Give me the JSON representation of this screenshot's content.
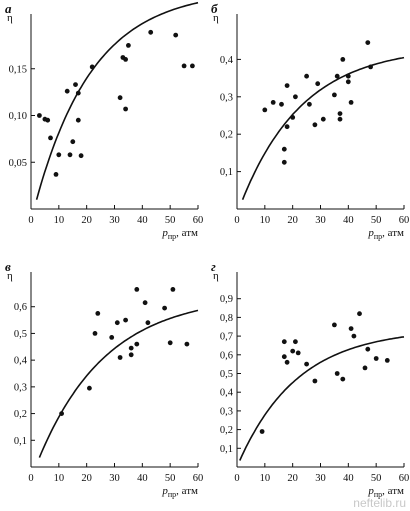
{
  "chart_data": [
    {
      "type": "scatter",
      "panel": "а",
      "ylabel": "η",
      "xlabel_main": "p",
      "xlabel_sub": "пр",
      "xlabel_unit": ", атм",
      "xlim": [
        0,
        60
      ],
      "ylim": [
        0,
        0.2
      ],
      "xticks": [
        0,
        10,
        20,
        30,
        40,
        50,
        60
      ],
      "yticks": [
        0.05,
        0.1,
        0.15
      ],
      "ytick_labels": [
        "0,05",
        "0,10",
        "0,15"
      ],
      "points": [
        [
          3,
          0.1
        ],
        [
          5,
          0.096
        ],
        [
          6,
          0.095
        ],
        [
          7,
          0.076
        ],
        [
          9,
          0.037
        ],
        [
          10,
          0.058
        ],
        [
          13,
          0.126
        ],
        [
          14,
          0.058
        ],
        [
          15,
          0.072
        ],
        [
          16,
          0.133
        ],
        [
          17,
          0.124
        ],
        [
          17,
          0.095
        ],
        [
          18,
          0.057
        ],
        [
          22,
          0.152
        ],
        [
          32,
          0.119
        ],
        [
          33,
          0.162
        ],
        [
          34,
          0.107
        ],
        [
          34,
          0.16
        ],
        [
          35,
          0.175
        ],
        [
          43,
          0.189
        ],
        [
          52,
          0.186
        ],
        [
          55,
          0.153
        ],
        [
          58,
          0.153
        ]
      ],
      "curve": {
        "a": 0.2345,
        "b": 0.01,
        "k": 0.048,
        "x0": 2,
        "x1": 60
      }
    },
    {
      "type": "scatter",
      "panel": "б",
      "ylabel": "η",
      "xlabel_main": "p",
      "xlabel_sub": "пр",
      "xlabel_unit": ", атм",
      "xlim": [
        0,
        60
      ],
      "ylim": [
        0,
        0.5
      ],
      "xticks": [
        0,
        10,
        20,
        30,
        40,
        50,
        60
      ],
      "yticks": [
        0.1,
        0.2,
        0.3,
        0.4
      ],
      "ytick_labels": [
        "0,1",
        "0,2",
        "0,3",
        "0,4"
      ],
      "points": [
        [
          10,
          0.265
        ],
        [
          13,
          0.285
        ],
        [
          16,
          0.28
        ],
        [
          17,
          0.125
        ],
        [
          17,
          0.16
        ],
        [
          18,
          0.22
        ],
        [
          18,
          0.33
        ],
        [
          20,
          0.245
        ],
        [
          21,
          0.3
        ],
        [
          25,
          0.355
        ],
        [
          26,
          0.28
        ],
        [
          28,
          0.225
        ],
        [
          29,
          0.335
        ],
        [
          31,
          0.24
        ],
        [
          35,
          0.305
        ],
        [
          36,
          0.355
        ],
        [
          37,
          0.255
        ],
        [
          37,
          0.24
        ],
        [
          38,
          0.4
        ],
        [
          40,
          0.34
        ],
        [
          40,
          0.355
        ],
        [
          41,
          0.285
        ],
        [
          47,
          0.445
        ],
        [
          48,
          0.38
        ]
      ],
      "curve": {
        "a": 0.435,
        "b": 0.025,
        "k": 0.045,
        "x0": 2,
        "x1": 60
      }
    },
    {
      "type": "scatter",
      "panel": "в",
      "ylabel": "η",
      "xlabel_main": "p",
      "xlabel_sub": "пр",
      "xlabel_unit": ", атм",
      "xlim": [
        0,
        60
      ],
      "ylim": [
        0,
        0.7
      ],
      "xticks": [
        0,
        10,
        20,
        30,
        40,
        50,
        60
      ],
      "yticks": [
        0.1,
        0.2,
        0.3,
        0.4,
        0.5,
        0.6
      ],
      "ytick_labels": [
        "0,1",
        "0,2",
        "0,3",
        "0,4",
        "0,5",
        "0,6"
      ],
      "points": [
        [
          11,
          0.2
        ],
        [
          21,
          0.295
        ],
        [
          23,
          0.5
        ],
        [
          24,
          0.575
        ],
        [
          29,
          0.485
        ],
        [
          31,
          0.54
        ],
        [
          32,
          0.41
        ],
        [
          34,
          0.55
        ],
        [
          36,
          0.42
        ],
        [
          36,
          0.445
        ],
        [
          38,
          0.665
        ],
        [
          38,
          0.46
        ],
        [
          41,
          0.615
        ],
        [
          42,
          0.54
        ],
        [
          48,
          0.595
        ],
        [
          50,
          0.465
        ],
        [
          51,
          0.665
        ],
        [
          56,
          0.46
        ]
      ],
      "curve": {
        "a": 0.645,
        "b": 0.035,
        "k": 0.041,
        "x0": 3,
        "x1": 60
      }
    },
    {
      "type": "scatter",
      "panel": "г",
      "ylabel": "η",
      "xlabel_main": "p",
      "xlabel_sub": "пр",
      "xlabel_unit": ", атм",
      "xlim": [
        0,
        60
      ],
      "ylim": [
        0,
        1.0
      ],
      "xticks": [
        0,
        10,
        20,
        30,
        40,
        50,
        60
      ],
      "yticks": [
        0.1,
        0.2,
        0.3,
        0.4,
        0.5,
        0.6,
        0.7,
        0.8,
        0.9
      ],
      "ytick_labels": [
        "0,1",
        "0,2",
        "0,3",
        "0,4",
        "0,5",
        "0,6",
        "0,7",
        "0,8",
        "0,9"
      ],
      "points": [
        [
          9,
          0.19
        ],
        [
          17,
          0.59
        ],
        [
          17,
          0.67
        ],
        [
          18,
          0.56
        ],
        [
          20,
          0.62
        ],
        [
          21,
          0.67
        ],
        [
          22,
          0.61
        ],
        [
          25,
          0.55
        ],
        [
          28,
          0.46
        ],
        [
          35,
          0.76
        ],
        [
          36,
          0.5
        ],
        [
          38,
          0.47
        ],
        [
          41,
          0.74
        ],
        [
          42,
          0.7
        ],
        [
          44,
          0.82
        ],
        [
          46,
          0.53
        ],
        [
          47,
          0.63
        ],
        [
          50,
          0.58
        ],
        [
          54,
          0.57
        ]
      ],
      "curve": {
        "a": 0.74,
        "b": 0.035,
        "k": 0.047,
        "x0": 1,
        "x1": 60
      }
    }
  ],
  "watermark": "neftelib.ru"
}
